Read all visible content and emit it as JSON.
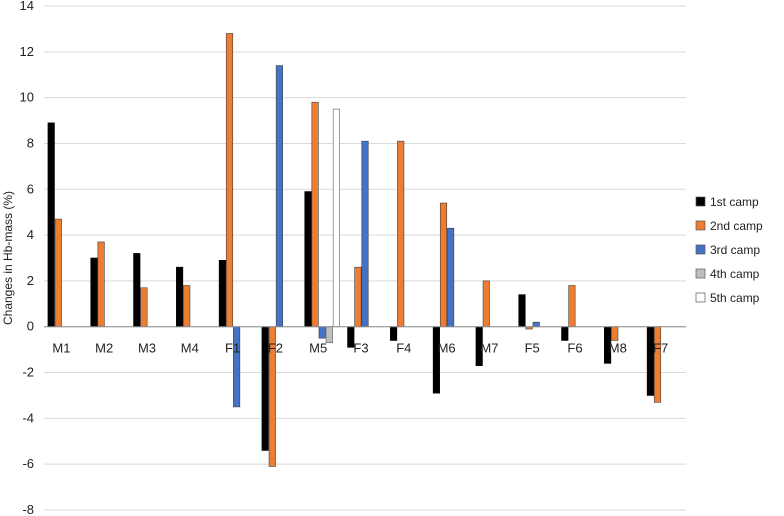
{
  "chart_data": {
    "type": "bar",
    "ylabel": "Changes in Hb-mass (%)",
    "xlabel": "",
    "title": "",
    "ylim": [
      -8,
      14
    ],
    "yticks": [
      -8,
      -6,
      -4,
      -2,
      0,
      2,
      4,
      6,
      8,
      10,
      12,
      14
    ],
    "grid": true,
    "legend_position": "right",
    "categories": [
      "M1",
      "M2",
      "M3",
      "M4",
      "F1",
      "F2",
      "M5",
      "F3",
      "F4",
      "M6",
      "M7",
      "F5",
      "F6",
      "M8",
      "F7"
    ],
    "series": [
      {
        "name": "1st camp",
        "color": "#000000",
        "values": [
          8.9,
          3.0,
          3.2,
          2.6,
          2.9,
          -5.4,
          5.9,
          -0.9,
          -0.6,
          -2.9,
          -1.7,
          1.4,
          -0.6,
          -1.6,
          -3.0
        ]
      },
      {
        "name": "2nd camp",
        "color": "#ED7D31",
        "values": [
          4.7,
          3.7,
          1.7,
          1.8,
          12.8,
          -6.1,
          9.8,
          2.6,
          8.1,
          5.4,
          2.0,
          -0.1,
          1.8,
          -0.6,
          -3.3
        ]
      },
      {
        "name": "3rd camp",
        "color": "#4472C4",
        "values": [
          null,
          null,
          null,
          null,
          -3.5,
          11.4,
          -0.5,
          8.1,
          null,
          4.3,
          null,
          0.2,
          null,
          null,
          null
        ]
      },
      {
        "name": "4th camp",
        "color": "#BFBFBF",
        "values": [
          null,
          null,
          null,
          null,
          null,
          null,
          -0.7,
          null,
          null,
          null,
          null,
          null,
          null,
          null,
          null
        ]
      },
      {
        "name": "5th camp",
        "color": "#FFFFFF",
        "values": [
          null,
          null,
          null,
          null,
          null,
          null,
          9.5,
          null,
          null,
          null,
          null,
          null,
          null,
          null,
          null
        ]
      }
    ]
  }
}
